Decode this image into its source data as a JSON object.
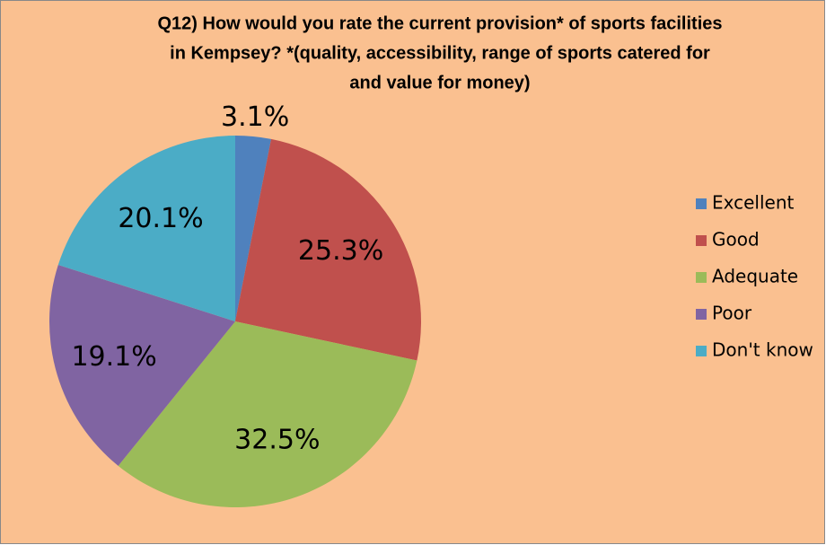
{
  "chart_data": {
    "type": "pie",
    "title": [
      "Q12) How would you rate the current provision* of sports facilities",
      "in Kempsey? *(quality, accessibility, range of sports catered for",
      "and value for money)"
    ],
    "categories": [
      "Excellent",
      "Good",
      "Adequate",
      "Poor",
      "Don't know"
    ],
    "values": [
      3.1,
      25.3,
      32.5,
      19.1,
      20.1
    ],
    "value_labels": [
      "3.1%",
      "25.3%",
      "32.5%",
      "19.1%",
      "20.1%"
    ],
    "colors": [
      "#4f81bd",
      "#c0504d",
      "#9bbb59",
      "#8064a2",
      "#4bacc6"
    ],
    "legend": "right"
  }
}
